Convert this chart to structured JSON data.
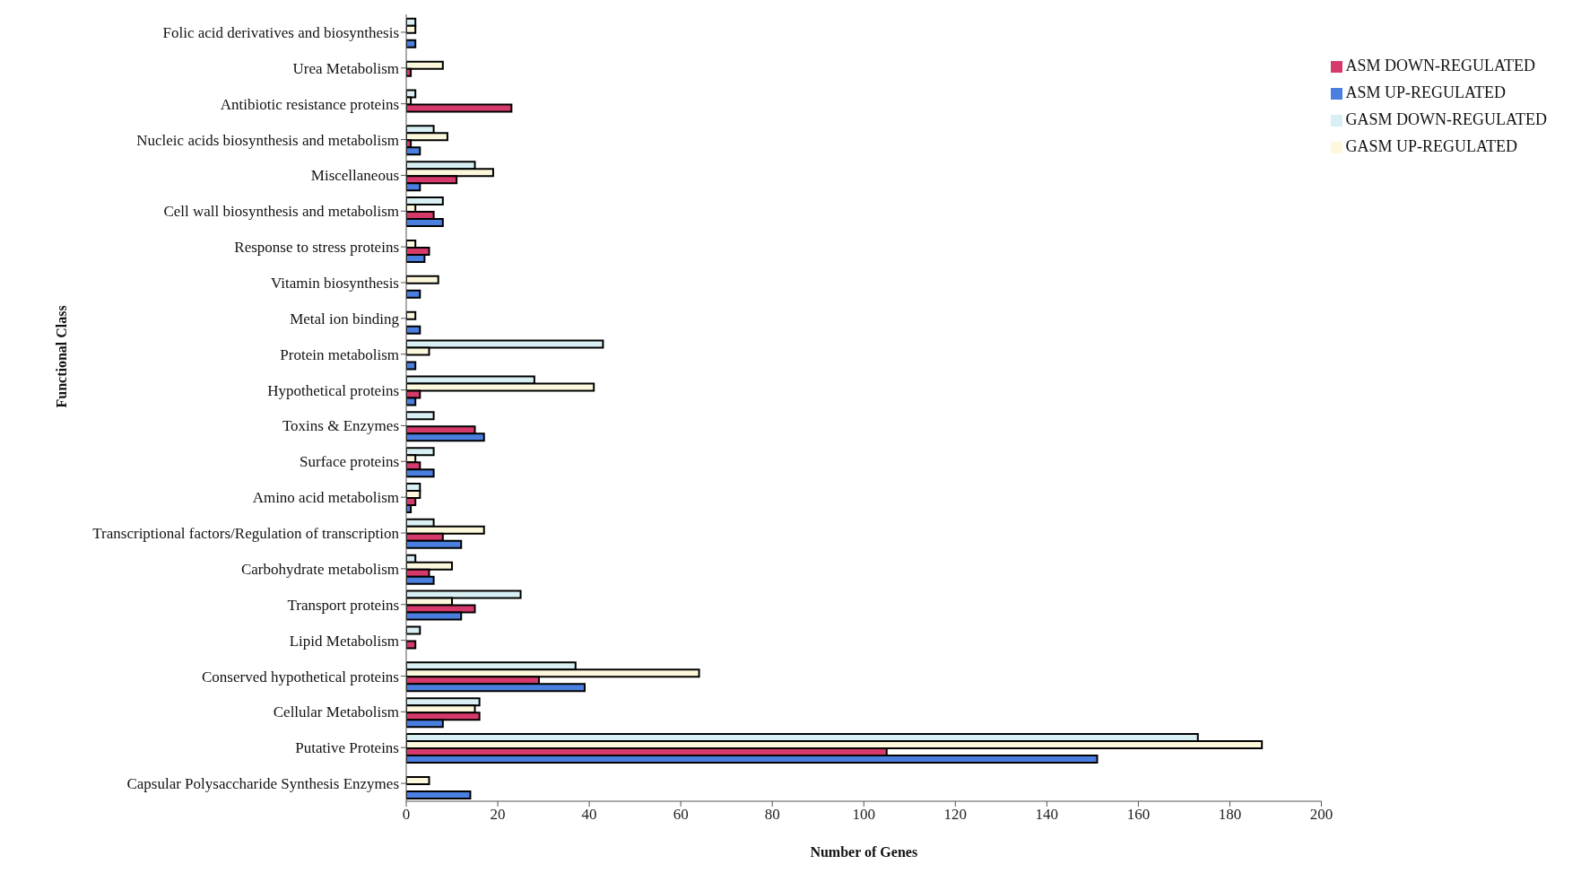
{
  "chart_data": {
    "type": "bar",
    "orientation": "horizontal",
    "xlabel": "Number of Genes",
    "ylabel": "Functional Class",
    "categories": [
      "Folic acid derivatives and biosynthesis",
      "Urea Metabolism",
      "Antibiotic resistance proteins",
      "Nucleic acids biosynthesis and metabolism",
      "Miscellaneous",
      "Cell wall biosynthesis and metabolism",
      "Response to stress proteins",
      "Vitamin biosynthesis",
      "Metal ion binding",
      "Protein  metabolism",
      "Hypothetical proteins",
      "Toxins & Enzymes",
      "Surface proteins",
      "Amino acid metabolism",
      "Transcriptional factors/Regulation of transcription",
      "Carbohydrate metabolism",
      "Transport proteins",
      "Lipid Metabolism",
      "Conserved hypothetical proteins",
      "Cellular Metabolism",
      "Putative Proteins",
      "Capsular Polysaccharide Synthesis Enzymes"
    ],
    "series": [
      {
        "name": "GASM DOWN-REGULATED",
        "color": "#d8f0f4",
        "values": [
          2,
          null,
          2,
          6,
          15,
          8,
          null,
          null,
          null,
          43,
          28,
          6,
          6,
          3,
          6,
          2,
          25,
          3,
          37,
          16,
          173,
          null
        ]
      },
      {
        "name": "GASM UP-REGULATED",
        "color": "#fdf8dc",
        "values": [
          2,
          8,
          1,
          9,
          19,
          2,
          2,
          7,
          2,
          5,
          41,
          null,
          2,
          3,
          17,
          10,
          10,
          null,
          64,
          15,
          187,
          5
        ]
      },
      {
        "name": "ASM DOWN-REGULATED",
        "color": "#d63a6a",
        "values": [
          null,
          1,
          23,
          1,
          11,
          6,
          5,
          null,
          null,
          null,
          3,
          15,
          3,
          2,
          8,
          5,
          15,
          2,
          29,
          16,
          105,
          null
        ]
      },
      {
        "name": "ASM UP-REGULATED",
        "color": "#4a7fe0",
        "values": [
          2,
          null,
          null,
          3,
          3,
          8,
          4,
          3,
          3,
          2,
          2,
          17,
          6,
          1,
          12,
          6,
          12,
          null,
          39,
          8,
          151,
          14
        ]
      }
    ],
    "xlim": [
      0,
      200
    ],
    "xticks": [
      0,
      20,
      40,
      60,
      80,
      100,
      120,
      140,
      160,
      180,
      200
    ],
    "legend": "top right",
    "grid": false
  }
}
